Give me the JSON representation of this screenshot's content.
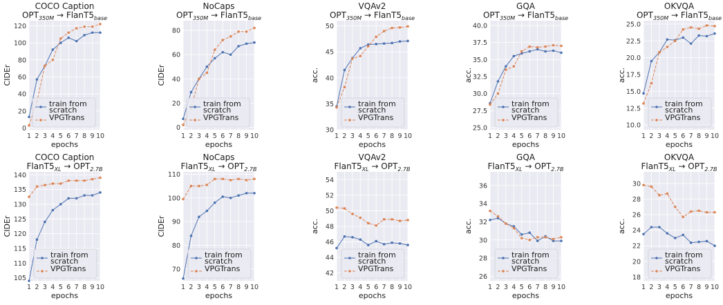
{
  "colors": {
    "plot_bg": "#eaeaf2",
    "grid": "#ffffff",
    "train_from_scratch": "#4c72b0",
    "vpgtrans": "#dd8452",
    "legend_bg": "#eaeaf2",
    "legend_border": "#cfcfd8"
  },
  "chart_data": [
    {
      "type": "line",
      "title": "COCO Caption",
      "subtitle": {
        "src": "OPT",
        "src_sub": "350M",
        "arrow": "→",
        "dst": "FlanT5",
        "dst_sub": "base"
      },
      "xlabel": "epochs",
      "ylabel": "CIDEr",
      "x": [
        1,
        2,
        3,
        4,
        5,
        6,
        7,
        8,
        9,
        10
      ],
      "xlim": [
        1,
        10
      ],
      "ylim": [
        -2,
        126
      ],
      "yticks": [
        0,
        20,
        40,
        60,
        80,
        100,
        120
      ],
      "series": [
        {
          "name": "train from scratch",
          "style": "solid",
          "values": [
            13,
            57,
            73,
            92,
            100,
            106,
            102,
            109,
            112,
            112
          ]
        },
        {
          "name": "VPGTrans",
          "style": "dashed",
          "values": [
            3,
            31,
            73,
            80,
            105,
            112,
            117,
            119,
            119,
            122
          ]
        }
      ],
      "legend": "lower-left",
      "grid": true
    },
    {
      "type": "line",
      "title": "NoCaps",
      "subtitle": {
        "src": "OPT",
        "src_sub": "350M",
        "arrow": "→",
        "dst": "FlanT5",
        "dst_sub": "base"
      },
      "xlabel": "epochs",
      "ylabel": "CIDEr",
      "x": [
        1,
        2,
        3,
        4,
        5,
        6,
        7,
        8,
        9,
        10
      ],
      "xlim": [
        1,
        10
      ],
      "ylim": [
        -2,
        88
      ],
      "yticks": [
        0,
        20,
        40,
        60,
        80
      ],
      "series": [
        {
          "name": "train from scratch",
          "style": "solid",
          "values": [
            7,
            29,
            40,
            50,
            57,
            62,
            60,
            67,
            69,
            70
          ]
        },
        {
          "name": "VPGTrans",
          "style": "dashed",
          "values": [
            2,
            16,
            40,
            45,
            64,
            72,
            75,
            79,
            79,
            82
          ]
        }
      ],
      "legend": "lower-left",
      "grid": true
    },
    {
      "type": "line",
      "title": "VQAv2",
      "subtitle": {
        "src": "OPT",
        "src_sub": "350M",
        "arrow": "→",
        "dst": "FlanT5",
        "dst_sub": "base"
      },
      "xlabel": "epochs",
      "ylabel": "acc.",
      "x": [
        1,
        2,
        3,
        4,
        5,
        6,
        7,
        8,
        9,
        10
      ],
      "xlim": [
        1,
        10
      ],
      "ylim": [
        30,
        51
      ],
      "yticks": [
        30,
        35,
        40,
        45,
        50
      ],
      "series": [
        {
          "name": "train from scratch",
          "style": "solid",
          "values": [
            34.5,
            41.5,
            43.8,
            45.7,
            46.4,
            46.5,
            46.6,
            46.7,
            47.0,
            47.1
          ]
        },
        {
          "name": "VPGTrans",
          "style": "dashed",
          "values": [
            34.3,
            38.2,
            43.7,
            44.2,
            46.1,
            47.9,
            49.0,
            49.6,
            49.7,
            49.9
          ]
        }
      ],
      "legend": "lower-right",
      "grid": true
    },
    {
      "type": "line",
      "title": "GQA",
      "subtitle": {
        "src": "OPT",
        "src_sub": "350M",
        "arrow": "→",
        "dst": "FlanT5",
        "dst_sub": "base"
      },
      "xlabel": "epochs",
      "ylabel": "acc.",
      "x": [
        1,
        2,
        3,
        4,
        5,
        6,
        7,
        8,
        9,
        10
      ],
      "xlim": [
        1,
        10
      ],
      "ylim": [
        24.7,
        40.7
      ],
      "yticks": [
        25.0,
        27.5,
        30.0,
        32.5,
        35.0,
        37.5,
        40.0
      ],
      "series": [
        {
          "name": "train from scratch",
          "style": "solid",
          "values": [
            28.6,
            31.8,
            34.0,
            35.5,
            35.9,
            36.2,
            36.5,
            36.2,
            36.3,
            36.0
          ]
        },
        {
          "name": "VPGTrans",
          "style": "dashed",
          "values": [
            28.4,
            30.0,
            33.5,
            34.0,
            36.2,
            36.9,
            36.8,
            36.9,
            37.1,
            37.0
          ]
        }
      ],
      "legend": "lower-right",
      "grid": true
    },
    {
      "type": "line",
      "title": "OKVQA",
      "subtitle": {
        "src": "OPT",
        "src_sub": "350M",
        "arrow": "→",
        "dst": "FlanT5",
        "dst_sub": "base"
      },
      "xlabel": "epochs",
      "ylabel": "acc.",
      "x": [
        1,
        2,
        3,
        4,
        5,
        6,
        7,
        8,
        9,
        10
      ],
      "xlim": [
        1,
        10
      ],
      "ylim": [
        9.3,
        25.5
      ],
      "yticks": [
        10.0,
        12.5,
        15.0,
        17.5,
        20.0,
        22.5,
        25.0
      ],
      "series": [
        {
          "name": "train from scratch",
          "style": "solid",
          "values": [
            14.7,
            19.5,
            20.8,
            22.7,
            22.6,
            23.0,
            22.1,
            23.3,
            23.2,
            23.6
          ]
        },
        {
          "name": "VPGTrans",
          "style": "dashed",
          "values": [
            13.2,
            16.2,
            20.8,
            21.6,
            22.5,
            24.2,
            24.5,
            24.3,
            24.8,
            24.7
          ]
        }
      ],
      "legend": "lower-right",
      "grid": true
    },
    {
      "type": "line",
      "title": "COCO Caption",
      "subtitle": {
        "src": "FlanT5",
        "src_sub": "XL",
        "arrow": "→",
        "dst": "OPT",
        "dst_sub": "2.7B"
      },
      "xlabel": "epochs",
      "ylabel": "CIDEr",
      "x": [
        1,
        2,
        3,
        4,
        5,
        6,
        7,
        8,
        9,
        10
      ],
      "xlim": [
        1,
        10
      ],
      "ylim": [
        104,
        141
      ],
      "yticks": [
        105,
        110,
        115,
        120,
        125,
        130,
        135,
        140
      ],
      "series": [
        {
          "name": "train from scratch",
          "style": "solid",
          "values": [
            104,
            118,
            124,
            128,
            130,
            132,
            132,
            133,
            133,
            134
          ]
        },
        {
          "name": "VPGTrans",
          "style": "dashed",
          "values": [
            132.5,
            136,
            136.5,
            137,
            137,
            138,
            138,
            138,
            138.5,
            139
          ]
        }
      ],
      "legend": "lower-right",
      "grid": true
    },
    {
      "type": "line",
      "title": "NoCaps",
      "subtitle": {
        "src": "FlanT5",
        "src_sub": "XL",
        "arrow": "→",
        "dst": "OPT",
        "dst_sub": "2.7B"
      },
      "xlabel": "epochs",
      "ylabel": "CIDEr",
      "x": [
        1,
        2,
        3,
        4,
        5,
        6,
        7,
        8,
        9,
        10
      ],
      "xlim": [
        1,
        10
      ],
      "ylim": [
        65,
        111
      ],
      "yticks": [
        70,
        80,
        90,
        100,
        110
      ],
      "series": [
        {
          "name": "train from scratch",
          "style": "solid",
          "values": [
            66,
            84,
            92,
            94.5,
            98,
            100.5,
            100,
            101,
            102,
            102
          ]
        },
        {
          "name": "VPGTrans",
          "style": "dashed",
          "values": [
            99.5,
            105,
            105,
            105.5,
            108,
            108,
            107.5,
            108,
            107.5,
            108
          ]
        }
      ],
      "legend": "lower-right",
      "grid": true
    },
    {
      "type": "line",
      "title": "VQAv2",
      "subtitle": {
        "src": "FlanT5",
        "src_sub": "XL",
        "arrow": "→",
        "dst": "OPT",
        "dst_sub": "2.7B"
      },
      "xlabel": "epochs",
      "ylabel": "acc.",
      "x": [
        1,
        2,
        3,
        4,
        5,
        6,
        7,
        8,
        9,
        10
      ],
      "xlim": [
        1,
        10
      ],
      "ylim": [
        41,
        55
      ],
      "yticks": [
        42,
        44,
        46,
        48,
        50,
        52,
        54
      ],
      "series": [
        {
          "name": "train from scratch",
          "style": "solid",
          "values": [
            45.2,
            46.7,
            46.6,
            46.3,
            45.6,
            46.1,
            45.7,
            45.9,
            45.8,
            45.6
          ]
        },
        {
          "name": "VPGTrans",
          "style": "dashed",
          "values": [
            50.4,
            50.3,
            49.6,
            49.1,
            48.4,
            48.1,
            48.9,
            48.9,
            48.7,
            48.8
          ]
        }
      ],
      "legend": "lower-right",
      "grid": true
    },
    {
      "type": "line",
      "title": "GQA",
      "subtitle": {
        "src": "FlanT5",
        "src_sub": "XL",
        "arrow": "→",
        "dst": "OPT",
        "dst_sub": "2.7B"
      },
      "xlabel": "epochs",
      "ylabel": "acc.",
      "x": [
        1,
        2,
        3,
        4,
        5,
        6,
        7,
        8,
        9,
        10
      ],
      "xlim": [
        1,
        10
      ],
      "ylim": [
        25.5,
        37.5
      ],
      "yticks": [
        26,
        28,
        30,
        32,
        34,
        36
      ],
      "series": [
        {
          "name": "train from scratch",
          "style": "solid",
          "values": [
            32.2,
            32.4,
            31.8,
            31.5,
            30.6,
            30.8,
            29.9,
            30.4,
            29.9,
            29.9
          ]
        },
        {
          "name": "VPGTrans",
          "style": "dashed",
          "values": [
            33.2,
            32.6,
            31.8,
            31.3,
            30.2,
            30.0,
            30.3,
            30.3,
            30.1,
            30.3
          ]
        }
      ],
      "legend": "lower-right",
      "grid": true
    },
    {
      "type": "line",
      "title": "OKVQA",
      "subtitle": {
        "src": "FlanT5",
        "src_sub": "XL",
        "arrow": "→",
        "dst": "OPT",
        "dst_sub": "2.7B"
      },
      "xlabel": "epochs",
      "ylabel": "acc.",
      "x": [
        1,
        2,
        3,
        4,
        5,
        6,
        7,
        8,
        9,
        10
      ],
      "xlim": [
        1,
        10
      ],
      "ylim": [
        17.5,
        31.5
      ],
      "yticks": [
        18,
        20,
        22,
        24,
        26,
        28,
        30
      ],
      "series": [
        {
          "name": "train from scratch",
          "style": "solid",
          "values": [
            23.5,
            24.4,
            24.4,
            23.6,
            23.0,
            23.4,
            22.4,
            22.5,
            22.6,
            22.0
          ]
        },
        {
          "name": "VPGTrans",
          "style": "dashed",
          "values": [
            29.8,
            29.6,
            28.5,
            28.7,
            27.0,
            25.7,
            26.4,
            26.5,
            26.3,
            26.3
          ]
        }
      ],
      "legend": "lower-right",
      "grid": true
    }
  ]
}
